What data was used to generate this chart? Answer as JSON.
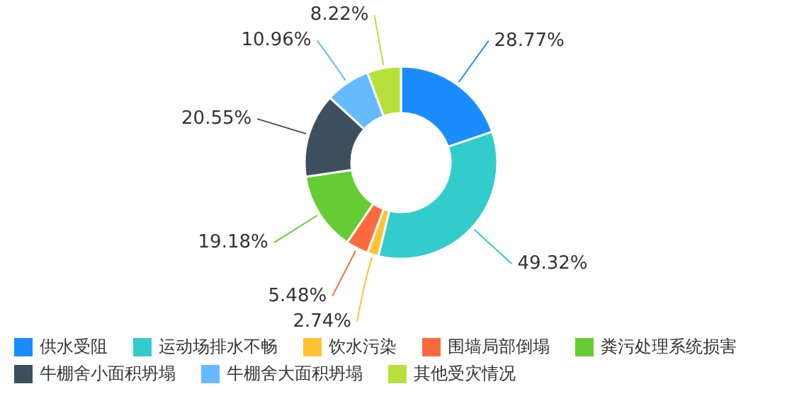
{
  "chart_data": {
    "type": "donut",
    "categories": [
      "供水受阻",
      "运动场排水不畅",
      "饮水污染",
      "围墙局部倒塌",
      "粪污处理系统损害",
      "牛棚舍小面积坍塌",
      "牛棚舍大面积坍塌",
      "其他受灾情况"
    ],
    "values": [
      28.77,
      49.32,
      2.74,
      5.48,
      19.18,
      20.55,
      10.96,
      8.22
    ],
    "value_labels": [
      "28.77%",
      "49.32%",
      "2.74%",
      "5.48%",
      "19.18%",
      "20.55%",
      "10.96%",
      "8.22%"
    ],
    "colors": [
      "#1a8cff",
      "#33cccc",
      "#ffc233",
      "#ff6a3d",
      "#66cc33",
      "#3d4f5c",
      "#66bbff",
      "#b8e03a"
    ],
    "legend": "bottom"
  }
}
